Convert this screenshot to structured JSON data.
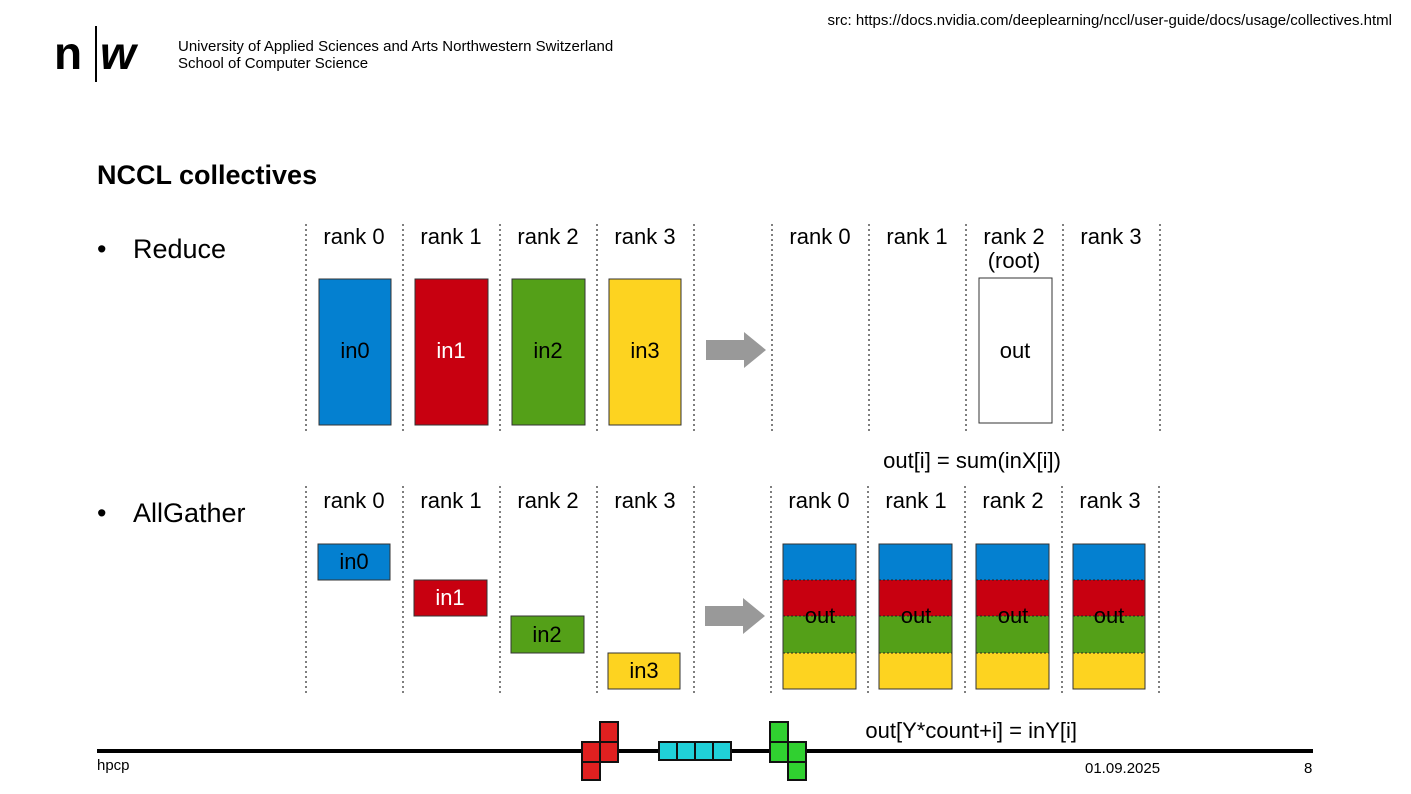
{
  "header": {
    "source_note": "src: https://docs.nvidia.com/deeplearning/nccl/user-guide/docs/usage/collectives.html",
    "logo_n": "n",
    "logo_w": "w",
    "university_line1": "University of Applied Sciences and Arts Northwestern Switzerland",
    "university_line2": "School of Computer Science"
  },
  "slide": {
    "title": "NCCL collectives",
    "bullets": [
      {
        "marker": "•",
        "text": "Reduce"
      },
      {
        "marker": "•",
        "text": "AllGather"
      }
    ]
  },
  "colors": {
    "blue": "#0480d0",
    "red": "#c80010",
    "green": "#54a018",
    "yellow": "#fdd320",
    "arrow": "#999999"
  },
  "reduce": {
    "before_ranks": [
      "rank 0",
      "rank 1",
      "rank 2",
      "rank 3"
    ],
    "inputs": [
      "in0",
      "in1",
      "in2",
      "in3"
    ],
    "after_ranks": [
      "rank 0",
      "rank 1",
      "rank 2",
      "rank 3"
    ],
    "root_label": "(root)",
    "output": "out",
    "formula": "out[i] = sum(inX[i])"
  },
  "allgather": {
    "before_ranks": [
      "rank 0",
      "rank 1",
      "rank 2",
      "rank 3"
    ],
    "inputs": [
      "in0",
      "in1",
      "in2",
      "in3"
    ],
    "after_ranks": [
      "rank 0",
      "rank 1",
      "rank 2",
      "rank 3"
    ],
    "outputs": [
      "out",
      "out",
      "out",
      "out"
    ],
    "formula": "out[Y*count+i] = inY[i]"
  },
  "footer": {
    "left": "hpcp",
    "date": "01.09.2025",
    "page": "8"
  }
}
